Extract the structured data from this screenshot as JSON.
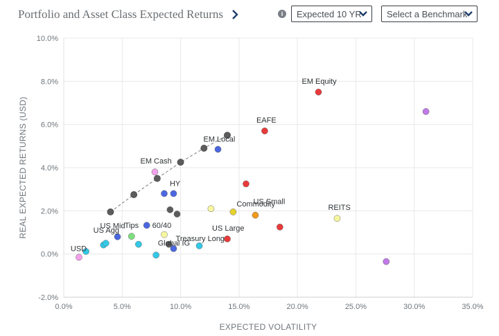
{
  "header": {
    "title": "Portfolio and Asset Class Expected Returns",
    "horizon_select": "Expected 10 YR",
    "benchmark_select": "Select a Benchmark"
  },
  "chart_data": {
    "type": "scatter",
    "xlabel": "EXPECTED VOLATILITY",
    "ylabel": "REAL EXPECTED RETURNS (USD)",
    "xlim": [
      0,
      35
    ],
    "ylim": [
      -2,
      10
    ],
    "x_ticks": [
      0,
      5,
      10,
      15,
      20,
      25,
      30,
      35
    ],
    "y_ticks": [
      -2,
      0,
      2,
      4,
      6,
      8,
      10
    ],
    "x_tick_labels": [
      "0.0%",
      "5.0%",
      "10.0%",
      "15.0%",
      "20.0%",
      "25.0%",
      "30.0%",
      "35.0%"
    ],
    "y_tick_labels": [
      "-2.0%",
      "0.0%",
      "2.0%",
      "4.0%",
      "6.0%",
      "8.0%",
      "10.0%"
    ],
    "grid": true,
    "frontier": {
      "color": "#5c5c5c",
      "points": [
        [
          4.0,
          1.95
        ],
        [
          6.0,
          2.75
        ],
        [
          8.0,
          3.5
        ],
        [
          10.0,
          4.25
        ],
        [
          12.0,
          4.9
        ],
        [
          14.0,
          5.5
        ]
      ]
    },
    "points": [
      {
        "x": 1.3,
        "y": -0.15,
        "color": "#f2a0ea",
        "label": "USD"
      },
      {
        "x": 1.9,
        "y": 0.12,
        "color": "#33c8e6",
        "label": ""
      },
      {
        "x": 3.4,
        "y": 0.42,
        "color": "#33c8e6",
        "label": ""
      },
      {
        "x": 3.6,
        "y": 0.5,
        "color": "#33c8e6",
        "label": "US Agg"
      },
      {
        "x": 4.6,
        "y": 0.8,
        "color": "#4b67e0",
        "label": "US Mid"
      },
      {
        "x": 5.8,
        "y": 0.82,
        "color": "#7ee07e",
        "label": "Tips"
      },
      {
        "x": 6.4,
        "y": 0.45,
        "color": "#33c8e6",
        "label": ""
      },
      {
        "x": 7.1,
        "y": 1.33,
        "color": "#4b67e0",
        "label": "60/40"
      },
      {
        "x": 7.9,
        "y": -0.05,
        "color": "#33c8e6",
        "label": ""
      },
      {
        "x": 8.6,
        "y": 0.9,
        "color": "#f6f6a0",
        "label": ""
      },
      {
        "x": 9.0,
        "y": 0.45,
        "color": "#5c5c5c",
        "label": "Global IG"
      },
      {
        "x": 9.4,
        "y": 0.25,
        "color": "#4b67e0",
        "label": ""
      },
      {
        "x": 11.6,
        "y": 0.38,
        "color": "#33c8e6",
        "label": "Treasury Long"
      },
      {
        "x": 14.0,
        "y": 0.7,
        "color": "#e83a3a",
        "label": "US Large"
      },
      {
        "x": 8.6,
        "y": 2.8,
        "color": "#4b67e0",
        "label": "HY"
      },
      {
        "x": 9.4,
        "y": 2.8,
        "color": "#4b67e0",
        "label": ""
      },
      {
        "x": 9.1,
        "y": 2.05,
        "color": "#5c5c5c",
        "label": ""
      },
      {
        "x": 9.7,
        "y": 1.85,
        "color": "#5c5c5c",
        "label": ""
      },
      {
        "x": 7.8,
        "y": 3.8,
        "color": "#f2a0ea",
        "label": "EM Cash"
      },
      {
        "x": 13.2,
        "y": 4.85,
        "color": "#4b67e0",
        "label": "EM Local"
      },
      {
        "x": 15.6,
        "y": 3.25,
        "color": "#e83a3a",
        "label": ""
      },
      {
        "x": 12.6,
        "y": 2.1,
        "color": "#f6f6a0",
        "label": ""
      },
      {
        "x": 14.5,
        "y": 1.95,
        "color": "#e5d22e",
        "label": "Commodity"
      },
      {
        "x": 16.4,
        "y": 1.8,
        "color": "#f29a1a",
        "label": "US Small"
      },
      {
        "x": 18.5,
        "y": 1.25,
        "color": "#e83a3a",
        "label": ""
      },
      {
        "x": 17.2,
        "y": 5.7,
        "color": "#e83a3a",
        "label": "EAFE"
      },
      {
        "x": 21.8,
        "y": 7.5,
        "color": "#e83a3a",
        "label": "EM Equity"
      },
      {
        "x": 23.4,
        "y": 1.65,
        "color": "#f6f6a0",
        "label": "REITS"
      },
      {
        "x": 27.6,
        "y": -0.35,
        "color": "#c07ae8",
        "label": ""
      },
      {
        "x": 31.0,
        "y": 6.6,
        "color": "#c07ae8",
        "label": ""
      }
    ]
  }
}
